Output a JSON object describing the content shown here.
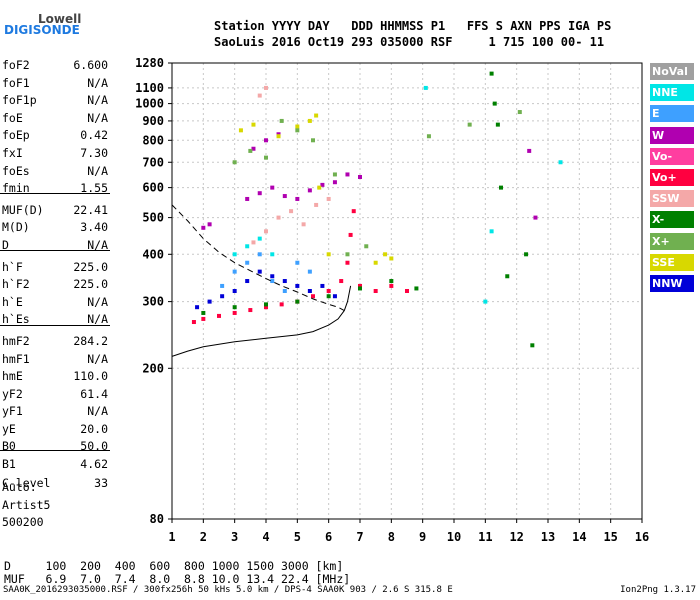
{
  "logo": {
    "brand_top": "Lowell",
    "brand_main": "DIGISONDE"
  },
  "header": {
    "line1": "Station YYYY DAY   DDD HHMMSS P1   FFS S AXN PPS IGA PS",
    "line2": "SaoLuis 2016 Oct19 293 035000 RSF     1 715 100 00- 11"
  },
  "params": [
    {
      "name": "foF2",
      "value": "6.600"
    },
    {
      "name": "foF1",
      "value": "N/A"
    },
    {
      "name": "foF1p",
      "value": "N/A"
    },
    {
      "name": "foE",
      "value": "N/A"
    },
    {
      "name": "foEp",
      "value": "0.42"
    },
    {
      "name": "fxI",
      "value": "7.30"
    },
    {
      "name": "foEs",
      "value": "N/A"
    },
    {
      "name": "fmin",
      "value": "1.55"
    },
    {
      "name": "MUF(D)",
      "value": "22.41"
    },
    {
      "name": "M(D)",
      "value": "3.40"
    },
    {
      "name": "D",
      "value": "N/A"
    },
    {
      "name": "h`F",
      "value": "225.0"
    },
    {
      "name": "h`F2",
      "value": "225.0"
    },
    {
      "name": "h`E",
      "value": "N/A"
    },
    {
      "name": "h`Es",
      "value": "N/A"
    },
    {
      "name": "hmF2",
      "value": "284.2"
    },
    {
      "name": "hmF1",
      "value": "N/A"
    },
    {
      "name": "hmE",
      "value": "110.0"
    },
    {
      "name": "yF2",
      "value": "61.4"
    },
    {
      "name": "yF1",
      "value": "N/A"
    },
    {
      "name": "yE",
      "value": "20.0"
    },
    {
      "name": "B0",
      "value": "50.0"
    },
    {
      "name": "B1",
      "value": "4.62"
    },
    {
      "name": "C-level",
      "value": "33"
    }
  ],
  "extra": {
    "auto": "Auto:",
    "artist": "Artist5",
    "version": "500200"
  },
  "legend": [
    {
      "label": "NoVal",
      "color": "#a0a0a0"
    },
    {
      "label": "NNE",
      "color": "#00e6e6"
    },
    {
      "label": "E",
      "color": "#3ea0ff"
    },
    {
      "label": "W",
      "color": "#b000b0"
    },
    {
      "label": "Vo-",
      "color": "#ff3ea0"
    },
    {
      "label": "Vo+",
      "color": "#ff0040"
    },
    {
      "label": "SSW",
      "color": "#f4a8a8"
    },
    {
      "label": "X-",
      "color": "#008000"
    },
    {
      "label": "X+",
      "color": "#70b050"
    },
    {
      "label": "SSE",
      "color": "#d8d800"
    },
    {
      "label": "NNW",
      "color": "#0000d8"
    }
  ],
  "bottom": {
    "d_line": "D     100  200  400  600  800 1000 1500 3000 [km]",
    "muf_line": "MUF   6.9  7.0  7.4  8.0  8.8 10.0 13.4 22.4 [MHz]",
    "footer_left": "SAA0K_2016293035000.RSF / 300fx256h 50 kHs 5.0 km / DPS-4 SAA0K 903 / 2.6 S 315.8 E",
    "footer_right": "Ion2Png 1.3.17"
  },
  "chart_data": {
    "type": "scatter",
    "title": "",
    "xlabel": "",
    "ylabel": "",
    "xlim": [
      1,
      16
    ],
    "ylim": [
      80,
      1280
    ],
    "y_log": true,
    "x_ticks": [
      1,
      2,
      3,
      4,
      5,
      6,
      7,
      8,
      9,
      10,
      11,
      12,
      13,
      14,
      15,
      16
    ],
    "y_ticks": [
      80,
      200,
      300,
      400,
      500,
      600,
      700,
      800,
      900,
      1000,
      1100,
      1280
    ],
    "grid": true,
    "traces": [
      {
        "name": "NNW",
        "color": "#0000d8",
        "points": [
          [
            1.8,
            290
          ],
          [
            2.2,
            300
          ],
          [
            2.6,
            310
          ],
          [
            3.0,
            320
          ],
          [
            3.4,
            340
          ],
          [
            3.8,
            360
          ],
          [
            4.2,
            350
          ],
          [
            4.6,
            340
          ],
          [
            5.0,
            330
          ],
          [
            5.4,
            320
          ],
          [
            5.8,
            330
          ],
          [
            6.2,
            310
          ]
        ]
      },
      {
        "name": "Vo+",
        "color": "#ff0040",
        "points": [
          [
            1.7,
            265
          ],
          [
            2.0,
            270
          ],
          [
            2.5,
            275
          ],
          [
            3.0,
            280
          ],
          [
            3.5,
            285
          ],
          [
            4.0,
            290
          ],
          [
            4.5,
            295
          ],
          [
            5.0,
            300
          ],
          [
            5.5,
            310
          ],
          [
            6.0,
            320
          ],
          [
            6.4,
            340
          ],
          [
            6.6,
            380
          ],
          [
            6.7,
            450
          ],
          [
            6.8,
            520
          ],
          [
            7.0,
            330
          ],
          [
            7.5,
            320
          ],
          [
            8.0,
            330
          ],
          [
            8.5,
            320
          ]
        ]
      },
      {
        "name": "X-",
        "color": "#008000",
        "points": [
          [
            2.0,
            280
          ],
          [
            3.0,
            290
          ],
          [
            4.0,
            295
          ],
          [
            5.0,
            300
          ],
          [
            6.0,
            310
          ],
          [
            7.0,
            325
          ],
          [
            8.0,
            340
          ],
          [
            8.8,
            325
          ],
          [
            11.2,
            1200
          ],
          [
            11.3,
            1000
          ],
          [
            11.4,
            880
          ],
          [
            11.5,
            600
          ],
          [
            11.7,
            350
          ],
          [
            12.3,
            400
          ],
          [
            12.5,
            230
          ]
        ]
      },
      {
        "name": "E",
        "color": "#3ea0ff",
        "points": [
          [
            2.6,
            330
          ],
          [
            3.0,
            360
          ],
          [
            3.4,
            380
          ],
          [
            3.8,
            400
          ],
          [
            4.2,
            340
          ],
          [
            4.6,
            320
          ],
          [
            5.0,
            380
          ],
          [
            5.4,
            360
          ]
        ]
      },
      {
        "name": "W",
        "color": "#b000b0",
        "points": [
          [
            3.4,
            560
          ],
          [
            3.8,
            580
          ],
          [
            4.2,
            600
          ],
          [
            4.6,
            570
          ],
          [
            5.0,
            560
          ],
          [
            5.4,
            590
          ],
          [
            5.8,
            610
          ],
          [
            6.2,
            620
          ],
          [
            6.6,
            650
          ],
          [
            7.0,
            640
          ],
          [
            3.6,
            760
          ],
          [
            4.0,
            800
          ],
          [
            4.4,
            830
          ],
          [
            2.0,
            470
          ],
          [
            2.2,
            480
          ],
          [
            12.4,
            750
          ],
          [
            12.6,
            500
          ]
        ]
      },
      {
        "name": "SSE",
        "color": "#d8d800",
        "points": [
          [
            3.2,
            850
          ],
          [
            3.6,
            880
          ],
          [
            4.4,
            820
          ],
          [
            5.0,
            870
          ],
          [
            5.4,
            900
          ],
          [
            5.6,
            930
          ],
          [
            6.0,
            400
          ],
          [
            7.5,
            380
          ],
          [
            7.8,
            400
          ],
          [
            8.0,
            390
          ],
          [
            5.7,
            600
          ]
        ]
      },
      {
        "name": "X+",
        "color": "#70b050",
        "points": [
          [
            3.0,
            700
          ],
          [
            3.5,
            750
          ],
          [
            4.0,
            720
          ],
          [
            4.5,
            900
          ],
          [
            5.0,
            850
          ],
          [
            5.5,
            800
          ],
          [
            6.2,
            650
          ],
          [
            6.6,
            400
          ],
          [
            7.2,
            420
          ],
          [
            9.2,
            820
          ],
          [
            10.5,
            880
          ],
          [
            12.1,
            950
          ]
        ]
      },
      {
        "name": "SSW",
        "color": "#f4a8a8",
        "points": [
          [
            3.6,
            430
          ],
          [
            4.0,
            460
          ],
          [
            4.4,
            500
          ],
          [
            4.8,
            520
          ],
          [
            5.2,
            480
          ],
          [
            5.6,
            540
          ],
          [
            6.0,
            560
          ],
          [
            3.8,
            1050
          ],
          [
            4.0,
            1100
          ]
        ]
      },
      {
        "name": "NNE",
        "color": "#00e6e6",
        "points": [
          [
            3.0,
            400
          ],
          [
            3.4,
            420
          ],
          [
            3.8,
            440
          ],
          [
            4.2,
            400
          ],
          [
            9.1,
            1100
          ],
          [
            11.0,
            300
          ],
          [
            11.2,
            460
          ],
          [
            13.4,
            700
          ]
        ]
      }
    ],
    "profile_solid": [
      [
        1.0,
        215
      ],
      [
        1.5,
        222
      ],
      [
        2.0,
        228
      ],
      [
        3.0,
        235
      ],
      [
        4.0,
        240
      ],
      [
        5.0,
        245
      ],
      [
        5.5,
        250
      ],
      [
        6.0,
        260
      ],
      [
        6.3,
        270
      ],
      [
        6.5,
        284
      ],
      [
        6.6,
        300
      ],
      [
        6.7,
        330
      ]
    ],
    "profile_dashed": [
      [
        1.0,
        540
      ],
      [
        1.5,
        490
      ],
      [
        2.0,
        440
      ],
      [
        2.5,
        405
      ],
      [
        3.0,
        380
      ],
      [
        3.5,
        362
      ],
      [
        4.0,
        345
      ],
      [
        4.5,
        330
      ],
      [
        5.0,
        318
      ],
      [
        5.5,
        305
      ],
      [
        6.0,
        295
      ],
      [
        6.3,
        290
      ],
      [
        6.5,
        284
      ]
    ]
  }
}
